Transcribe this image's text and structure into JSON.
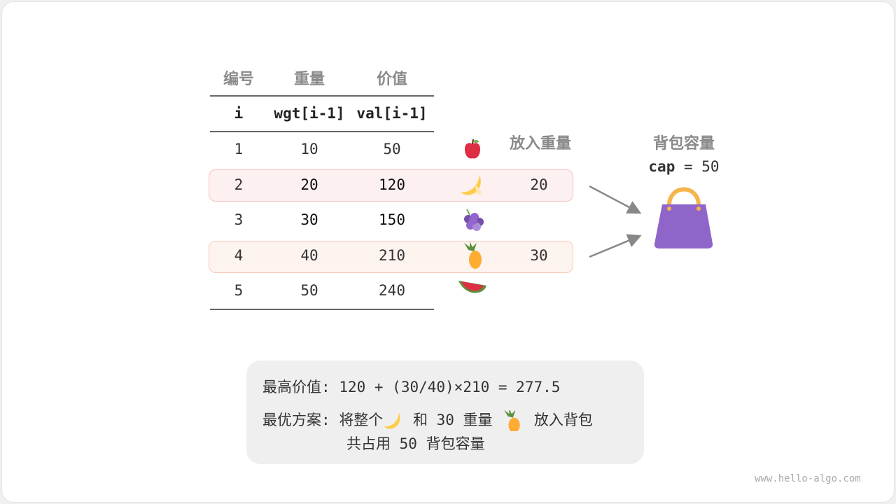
{
  "table": {
    "headers_cn": [
      "编号",
      "重量",
      "价值"
    ],
    "headers_code": [
      "i",
      "wgt[i-1]",
      "val[i-1]"
    ],
    "put_weight_header": "放入重量",
    "rows": [
      {
        "i": "1",
        "wgt": "10",
        "val": "50",
        "fruit": "apple-icon",
        "put": ""
      },
      {
        "i": "2",
        "wgt": "20",
        "val": "120",
        "fruit": "banana-icon",
        "put": "20"
      },
      {
        "i": "3",
        "wgt": "30",
        "val": "150",
        "fruit": "grapes-icon",
        "put": ""
      },
      {
        "i": "4",
        "wgt": "40",
        "val": "210",
        "fruit": "pineapple-icon",
        "put": "30"
      },
      {
        "i": "5",
        "wgt": "50",
        "val": "240",
        "fruit": "watermelon-icon",
        "put": ""
      }
    ]
  },
  "knapsack": {
    "title": "背包容量",
    "cap_label": "cap",
    "cap_eq": "= 50",
    "icon": "handbag-icon",
    "color": "#9065c9"
  },
  "summary": {
    "max_label": "最高价值:",
    "max_expr": "120 + (30/40)×210 = 277.5",
    "plan_label": "最优方案:",
    "plan_a": "将整个",
    "plan_b": "和 30 重量",
    "plan_c": "放入背包",
    "plan_line2": "共占用 50 背包容量"
  },
  "colors": {
    "highlight_bg": "#fdf1f0",
    "highlight_border": "#f6c6c0",
    "box_bg": "#efefef"
  },
  "watermark": "www.hello-algo.com"
}
